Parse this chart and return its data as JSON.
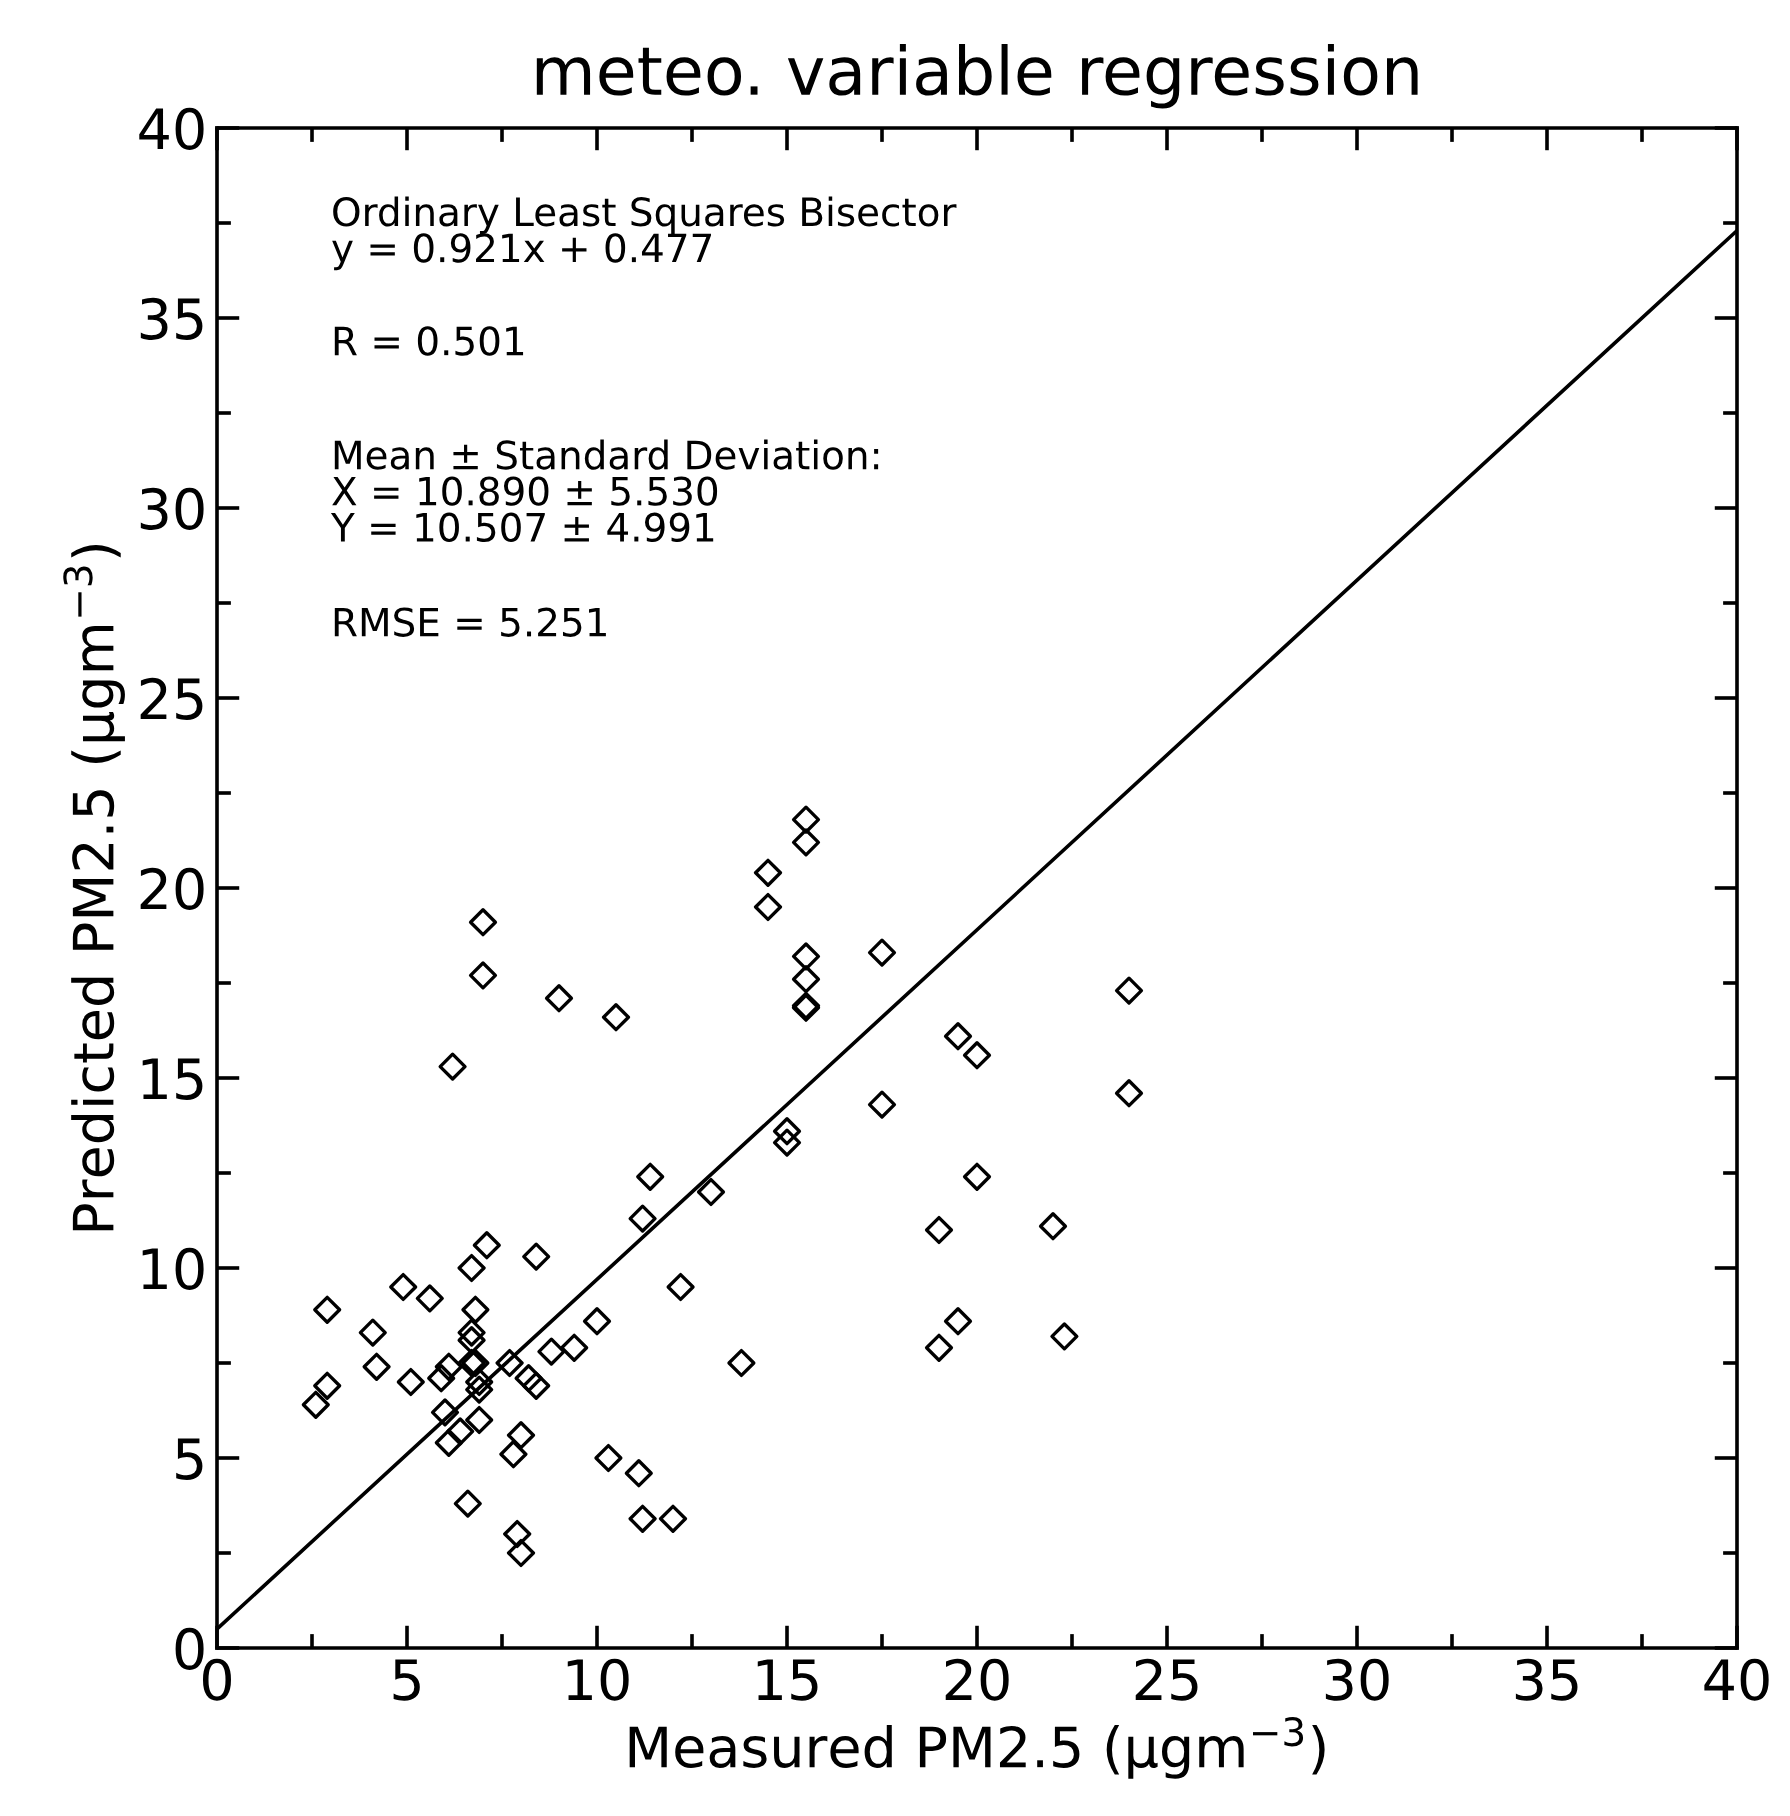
{
  "chart_data": {
    "type": "scatter",
    "title": "meteo. variable regression",
    "xlabel": "Measured PM2.5 (μgm$^{−3}$)",
    "ylabel": "Predicted PM2.5 (μgm$^{−3}$)",
    "xlim": [
      0,
      40
    ],
    "ylim": [
      0,
      40
    ],
    "xticks": [
      0,
      {
        "value": 2.5,
        "label": null
      },
      5,
      {
        "value": 7.5,
        "label": null
      },
      10,
      {
        "value": 12.5,
        "label": null
      },
      15,
      {
        "value": 17.5,
        "label": null
      },
      20,
      {
        "value": 22.5,
        "label": null
      },
      25,
      {
        "value": 27.5,
        "label": null
      },
      30,
      {
        "value": 32.5,
        "label": null
      },
      35,
      {
        "value": 37.5,
        "label": null
      },
      40
    ],
    "yticks": [
      0,
      {
        "value": 2.5,
        "label": null
      },
      5,
      {
        "value": 7.5,
        "label": null
      },
      10,
      {
        "value": 12.5,
        "label": null
      },
      15,
      {
        "value": 17.5,
        "label": null
      },
      20,
      {
        "value": 22.5,
        "label": null
      },
      25,
      {
        "value": 27.5,
        "label": null
      },
      30,
      {
        "value": 32.5,
        "label": null
      },
      35,
      {
        "value": 37.5,
        "label": null
      },
      40
    ],
    "grid": false,
    "annotations": [
      "Ordinary Least Squares Bisector\ny = 0.921x + 0.477",
      "R = 0.501",
      "Mean ± Standard Deviation:\nX = 10.890 ± 5.530\nY = 10.507 ± 4.991",
      "RMSE = 5.251"
    ],
    "series": [
      {
        "color": "#000000",
        "marker": "diamond",
        "x": [
          15.5,
          15.5,
          14.5,
          14.5,
          7.0,
          7.0,
          15.5,
          15.5,
          15.5,
          15.5,
          9.0,
          10.5,
          6.2,
          15.0,
          15.0,
          11.4,
          11.2,
          13.0,
          7.1,
          6.7,
          8.4,
          4.9,
          5.6,
          2.9,
          12.2,
          6.8,
          4.1,
          6.7,
          6.7,
          10.0,
          8.8,
          9.4,
          6.7,
          6.8,
          7.7,
          4.2,
          6.1,
          5.9,
          5.1,
          6.9,
          8.2,
          8.4,
          6.9,
          2.9,
          2.6,
          6.0,
          6.4,
          6.1,
          6.9,
          13.8,
          8.0,
          7.8,
          10.3,
          11.1,
          6.6,
          7.9,
          8.0,
          11.2,
          12.0,
          17.5,
          24.0,
          19.5,
          20.0,
          17.5,
          24.0,
          20.0,
          19.0,
          22.0,
          19.5,
          19.0,
          22.3
        ],
        "values": [
          21.8,
          21.2,
          20.4,
          19.5,
          19.1,
          17.7,
          18.2,
          17.6,
          16.85,
          16.9,
          17.1,
          16.6,
          15.3,
          13.6,
          13.3,
          12.4,
          11.3,
          12.0,
          10.6,
          10.0,
          10.3,
          9.5,
          9.2,
          8.9,
          9.5,
          8.9,
          8.3,
          8.3,
          8.1,
          8.6,
          7.8,
          7.9,
          7.5,
          7.5,
          7.5,
          7.4,
          7.4,
          7.1,
          7.0,
          7.0,
          7.1,
          6.9,
          6.8,
          6.9,
          6.4,
          6.2,
          5.7,
          5.4,
          6.0,
          7.5,
          5.6,
          5.1,
          5.0,
          4.6,
          3.8,
          3.0,
          2.5,
          3.4,
          3.4,
          18.3,
          17.3,
          16.1,
          15.6,
          14.3,
          14.6,
          12.4,
          11.0,
          11.1,
          8.6,
          7.9,
          8.2
        ]
      },
      {
        "type": "line",
        "color": "#000000",
        "marker": "none",
        "line_style": "solid",
        "x": [
          0,
          40
        ],
        "values": [
          0.5,
          37.3
        ]
      }
    ]
  }
}
